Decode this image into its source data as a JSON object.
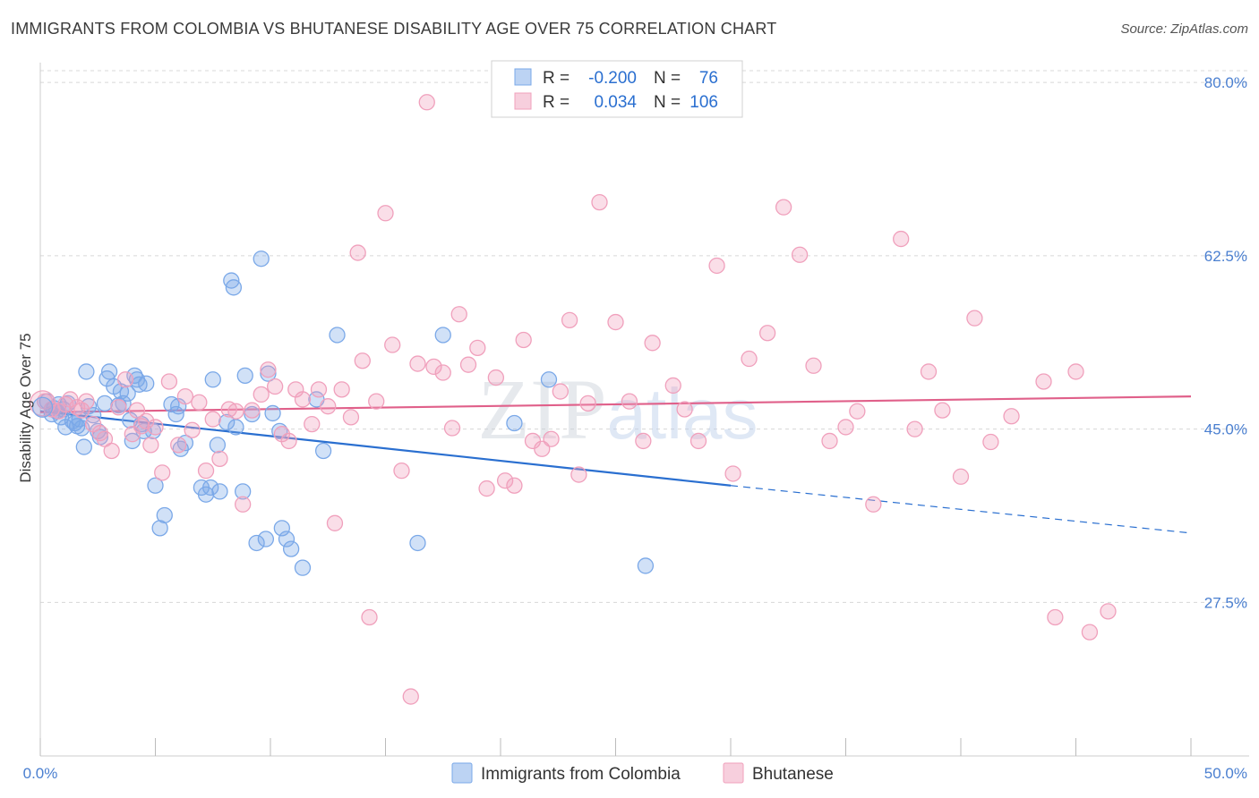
{
  "chart_data": {
    "type": "scatter",
    "title": "IMMIGRANTS FROM COLOMBIA VS BHUTANESE DISABILITY AGE OVER 75 CORRELATION CHART",
    "source": "Source: ZipAtlas.com",
    "ylabel": "Disability Age Over 75",
    "xlabel": "",
    "xlim": [
      0,
      50
    ],
    "ylim": [
      12,
      82
    ],
    "x_tick_labels": [
      "0.0%",
      "50.0%"
    ],
    "y_ticks": [
      {
        "value": 27.5,
        "label": "27.5%"
      },
      {
        "value": 45.0,
        "label": "45.0%"
      },
      {
        "value": 62.5,
        "label": "62.5%"
      },
      {
        "value": 80.0,
        "label": "80.0%"
      }
    ],
    "grid": "horizontal dashed",
    "legend_position": "bottom",
    "watermark": "ZIPatlas",
    "stats": [
      {
        "r_label": "R =",
        "r_value": "-0.200",
        "n_label": "N =",
        "n_value": "76"
      },
      {
        "r_label": "R =",
        "r_value": "0.034",
        "n_label": "N =",
        "n_value": "106"
      }
    ],
    "series": [
      {
        "name": "Immigrants from Colombia",
        "color": "#7aa8e8",
        "line_color": "#2a6fd0",
        "trend": {
          "x0": 0,
          "y0": 46.8,
          "x1": 30,
          "y1": 39.3,
          "x_dash_end": 50,
          "y_dash_end": 34.5
        },
        "points": [
          [
            0.3,
            47.8
          ],
          [
            0.5,
            46.5
          ],
          [
            0.6,
            47.1
          ],
          [
            0.7,
            46.8
          ],
          [
            0.8,
            47.5
          ],
          [
            0.9,
            46.2
          ],
          [
            1.0,
            47.0
          ],
          [
            1.1,
            45.2
          ],
          [
            1.2,
            47.6
          ],
          [
            1.4,
            45.8
          ],
          [
            1.5,
            45.6
          ],
          [
            1.6,
            45.3
          ],
          [
            1.7,
            46.0
          ],
          [
            1.8,
            45.1
          ],
          [
            1.9,
            43.2
          ],
          [
            2.0,
            50.8
          ],
          [
            2.1,
            47.3
          ],
          [
            2.3,
            46.4
          ],
          [
            2.5,
            44.8
          ],
          [
            2.6,
            44.2
          ],
          [
            2.8,
            47.6
          ],
          [
            2.9,
            50.1
          ],
          [
            3.0,
            50.8
          ],
          [
            3.2,
            49.3
          ],
          [
            3.4,
            47.4
          ],
          [
            3.5,
            48.8
          ],
          [
            3.6,
            47.6
          ],
          [
            3.8,
            48.6
          ],
          [
            3.9,
            45.9
          ],
          [
            4.0,
            43.8
          ],
          [
            4.1,
            50.4
          ],
          [
            4.2,
            50.0
          ],
          [
            4.3,
            49.5
          ],
          [
            4.4,
            45.5
          ],
          [
            4.5,
            44.8
          ],
          [
            4.6,
            49.6
          ],
          [
            4.9,
            44.8
          ],
          [
            5.0,
            39.3
          ],
          [
            5.2,
            35.0
          ],
          [
            5.4,
            36.3
          ],
          [
            5.7,
            47.5
          ],
          [
            5.9,
            46.5
          ],
          [
            6.0,
            47.3
          ],
          [
            6.1,
            43.0
          ],
          [
            6.3,
            43.6
          ],
          [
            7.0,
            39.1
          ],
          [
            7.2,
            38.4
          ],
          [
            7.4,
            39.1
          ],
          [
            7.5,
            50.0
          ],
          [
            7.7,
            43.4
          ],
          [
            7.8,
            38.7
          ],
          [
            8.1,
            45.7
          ],
          [
            8.3,
            60.0
          ],
          [
            8.4,
            59.3
          ],
          [
            8.5,
            45.2
          ],
          [
            8.8,
            38.7
          ],
          [
            8.9,
            50.4
          ],
          [
            9.2,
            46.5
          ],
          [
            9.4,
            33.5
          ],
          [
            9.6,
            62.2
          ],
          [
            9.8,
            33.9
          ],
          [
            9.9,
            50.6
          ],
          [
            10.1,
            46.6
          ],
          [
            10.4,
            44.8
          ],
          [
            10.5,
            35.0
          ],
          [
            10.7,
            33.9
          ],
          [
            10.9,
            32.9
          ],
          [
            11.4,
            31.0
          ],
          [
            12.0,
            48.0
          ],
          [
            12.3,
            42.8
          ],
          [
            12.9,
            54.5
          ],
          [
            16.4,
            33.5
          ],
          [
            17.5,
            54.5
          ],
          [
            20.6,
            45.6
          ],
          [
            22.1,
            50.0
          ],
          [
            26.3,
            31.2
          ]
        ]
      },
      {
        "name": "Bhutanese",
        "color": "#f0a0bc",
        "line_color": "#e0608a",
        "trend": {
          "x0": 0,
          "y0": 46.7,
          "x1": 50,
          "y1": 48.3
        },
        "points": [
          [
            0.2,
            47.8
          ],
          [
            0.5,
            47.0
          ],
          [
            0.8,
            46.8
          ],
          [
            1.1,
            47.5
          ],
          [
            1.3,
            48.0
          ],
          [
            1.6,
            47.2
          ],
          [
            1.8,
            46.9
          ],
          [
            2.0,
            47.8
          ],
          [
            2.3,
            45.5
          ],
          [
            2.6,
            44.6
          ],
          [
            2.8,
            44.0
          ],
          [
            3.1,
            42.8
          ],
          [
            3.4,
            47.2
          ],
          [
            3.7,
            50.0
          ],
          [
            4.0,
            44.5
          ],
          [
            4.2,
            46.9
          ],
          [
            4.4,
            45.3
          ],
          [
            4.6,
            45.8
          ],
          [
            4.8,
            43.4
          ],
          [
            5.0,
            45.2
          ],
          [
            5.3,
            40.6
          ],
          [
            5.6,
            49.8
          ],
          [
            6.0,
            43.4
          ],
          [
            6.3,
            48.3
          ],
          [
            6.6,
            44.9
          ],
          [
            6.9,
            47.7
          ],
          [
            7.2,
            40.8
          ],
          [
            7.5,
            46.0
          ],
          [
            7.8,
            42.0
          ],
          [
            8.2,
            47.0
          ],
          [
            8.5,
            46.8
          ],
          [
            8.8,
            37.4
          ],
          [
            9.2,
            46.9
          ],
          [
            9.6,
            48.5
          ],
          [
            9.9,
            51.0
          ],
          [
            10.2,
            49.3
          ],
          [
            10.5,
            44.5
          ],
          [
            10.8,
            43.8
          ],
          [
            11.1,
            49.0
          ],
          [
            11.4,
            48.0
          ],
          [
            11.8,
            45.5
          ],
          [
            12.1,
            49.0
          ],
          [
            12.5,
            47.3
          ],
          [
            12.8,
            35.5
          ],
          [
            13.1,
            49.0
          ],
          [
            13.5,
            46.2
          ],
          [
            13.8,
            62.8
          ],
          [
            14.0,
            51.9
          ],
          [
            14.3,
            26.0
          ],
          [
            14.6,
            47.8
          ],
          [
            15.0,
            66.8
          ],
          [
            15.3,
            53.5
          ],
          [
            15.7,
            40.8
          ],
          [
            16.1,
            18.0
          ],
          [
            16.4,
            51.6
          ],
          [
            16.8,
            78.0
          ],
          [
            17.1,
            51.3
          ],
          [
            17.5,
            50.7
          ],
          [
            17.9,
            45.1
          ],
          [
            18.2,
            56.6
          ],
          [
            18.6,
            51.5
          ],
          [
            19.0,
            53.2
          ],
          [
            19.4,
            39.0
          ],
          [
            19.8,
            50.2
          ],
          [
            20.2,
            39.8
          ],
          [
            20.6,
            39.3
          ],
          [
            21.0,
            54.0
          ],
          [
            21.4,
            43.8
          ],
          [
            21.8,
            43.0
          ],
          [
            22.2,
            44.0
          ],
          [
            22.6,
            48.8
          ],
          [
            23.0,
            56.0
          ],
          [
            23.4,
            40.4
          ],
          [
            23.8,
            47.6
          ],
          [
            24.3,
            67.9
          ],
          [
            25.0,
            55.8
          ],
          [
            25.6,
            47.8
          ],
          [
            26.2,
            43.8
          ],
          [
            26.6,
            53.7
          ],
          [
            27.5,
            49.4
          ],
          [
            28.0,
            47.0
          ],
          [
            28.6,
            43.8
          ],
          [
            29.4,
            61.5
          ],
          [
            30.1,
            40.5
          ],
          [
            30.8,
            52.1
          ],
          [
            31.6,
            54.7
          ],
          [
            32.3,
            67.4
          ],
          [
            33.0,
            62.6
          ],
          [
            33.6,
            51.4
          ],
          [
            34.3,
            43.8
          ],
          [
            35.0,
            45.2
          ],
          [
            35.5,
            46.8
          ],
          [
            36.2,
            37.4
          ],
          [
            37.4,
            64.2
          ],
          [
            38.0,
            45.0
          ],
          [
            38.6,
            50.8
          ],
          [
            39.2,
            46.9
          ],
          [
            40.0,
            40.2
          ],
          [
            40.6,
            56.2
          ],
          [
            41.3,
            43.7
          ],
          [
            42.2,
            46.3
          ],
          [
            43.6,
            49.8
          ],
          [
            44.1,
            26.0
          ],
          [
            45.0,
            50.8
          ],
          [
            45.6,
            24.5
          ],
          [
            46.4,
            26.6
          ]
        ]
      }
    ]
  }
}
